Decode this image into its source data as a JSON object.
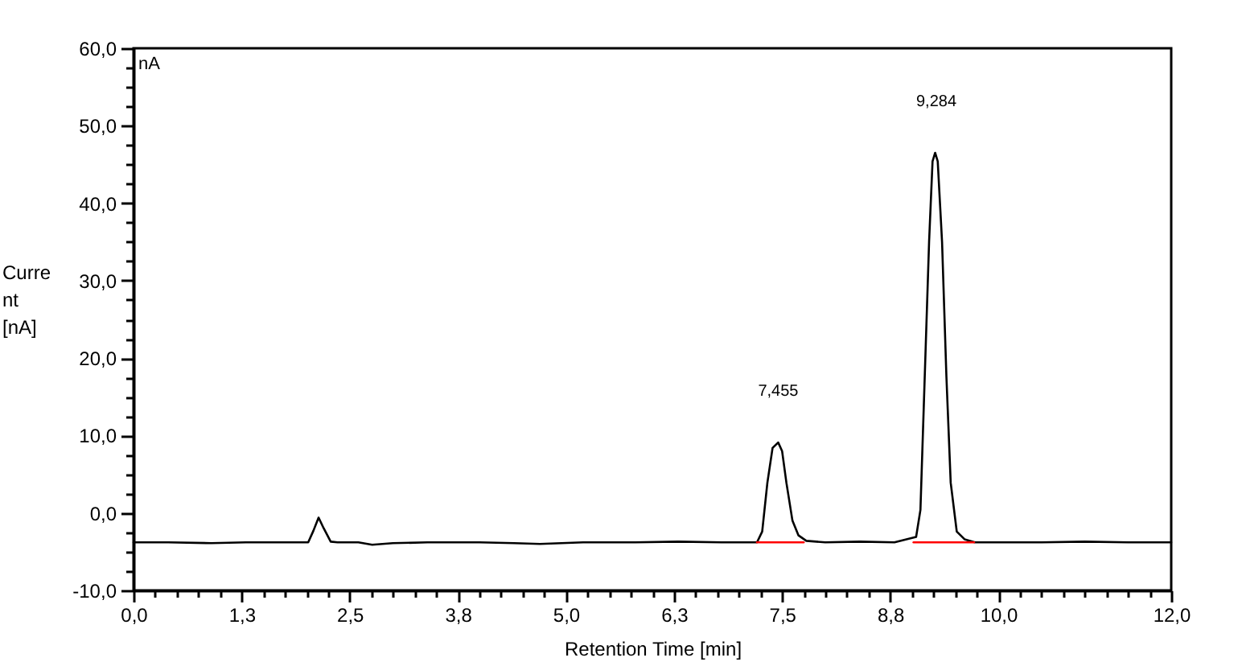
{
  "chart_data": {
    "type": "line",
    "xlabel": "Retention Time [min]",
    "ylabel": "Current [nA]",
    "annotations": [
      "nA",
      {
        "text": "7,455",
        "x": 7.455,
        "y": 9.1
      },
      {
        "text": "9,284",
        "x": 9.284,
        "y": 46.5
      }
    ],
    "xlim": [
      0,
      12
    ],
    "ylim": [
      -10,
      60
    ],
    "xticks": [
      {
        "value": 0,
        "label": "0,0"
      },
      {
        "value": 0.25,
        "label": null
      },
      {
        "value": 0.5,
        "label": null
      },
      {
        "value": 0.75,
        "label": null
      },
      {
        "value": 1,
        "label": null
      },
      {
        "value": 1.25,
        "label": "1,3"
      },
      {
        "value": 1.5,
        "label": null
      },
      {
        "value": 1.75,
        "label": null
      },
      {
        "value": 2,
        "label": null
      },
      {
        "value": 2.25,
        "label": null
      },
      {
        "value": 2.5,
        "label": "2,5"
      },
      {
        "value": 2.75,
        "label": null
      },
      {
        "value": 3,
        "label": null
      },
      {
        "value": 3.25,
        "label": null
      },
      {
        "value": 3.5,
        "label": null
      },
      {
        "value": 3.75,
        "label": "3,8"
      },
      {
        "value": 4,
        "label": null
      },
      {
        "value": 4.25,
        "label": null
      },
      {
        "value": 4.5,
        "label": null
      },
      {
        "value": 4.75,
        "label": null
      },
      {
        "value": 5,
        "label": "5,0"
      },
      {
        "value": 5.25,
        "label": null
      },
      {
        "value": 5.5,
        "label": null
      },
      {
        "value": 5.75,
        "label": null
      },
      {
        "value": 6,
        "label": null
      },
      {
        "value": 6.25,
        "label": "6,3"
      },
      {
        "value": 6.5,
        "label": null
      },
      {
        "value": 6.75,
        "label": null
      },
      {
        "value": 7,
        "label": null
      },
      {
        "value": 7.25,
        "label": null
      },
      {
        "value": 7.5,
        "label": "7,5"
      },
      {
        "value": 7.75,
        "label": null
      },
      {
        "value": 8,
        "label": null
      },
      {
        "value": 8.25,
        "label": null
      },
      {
        "value": 8.5,
        "label": null
      },
      {
        "value": 8.75,
        "label": "8,8"
      },
      {
        "value": 9,
        "label": null
      },
      {
        "value": 9.25,
        "label": null
      },
      {
        "value": 9.5,
        "label": null
      },
      {
        "value": 9.75,
        "label": null
      },
      {
        "value": 10,
        "label": "10,0"
      },
      {
        "value": 10.25,
        "label": null
      },
      {
        "value": 10.5,
        "label": null
      },
      {
        "value": 10.75,
        "label": null
      },
      {
        "value": 11,
        "label": null
      },
      {
        "value": 11.25,
        "label": null
      },
      {
        "value": 11.5,
        "label": null
      },
      {
        "value": 11.75,
        "label": null
      },
      {
        "value": 12,
        "label": "12,0"
      }
    ],
    "yticks": [
      {
        "value": -10,
        "label": "-10,0"
      },
      {
        "value": -7.5,
        "label": null
      },
      {
        "value": -5,
        "label": null
      },
      {
        "value": -2.5,
        "label": null
      },
      {
        "value": 0,
        "label": "0,0"
      },
      {
        "value": 2.5,
        "label": null
      },
      {
        "value": 5,
        "label": null
      },
      {
        "value": 7.5,
        "label": null
      },
      {
        "value": 10,
        "label": "10,0"
      },
      {
        "value": 12.5,
        "label": null
      },
      {
        "value": 15,
        "label": null
      },
      {
        "value": 17.5,
        "label": null
      },
      {
        "value": 20,
        "label": "20,0"
      },
      {
        "value": 22.5,
        "label": null
      },
      {
        "value": 25,
        "label": null
      },
      {
        "value": 27.5,
        "label": null
      },
      {
        "value": 30,
        "label": "30,0"
      },
      {
        "value": 32.5,
        "label": null
      },
      {
        "value": 35,
        "label": null
      },
      {
        "value": 37.5,
        "label": null
      },
      {
        "value": 40,
        "label": "40,0"
      },
      {
        "value": 42.5,
        "label": null
      },
      {
        "value": 45,
        "label": null
      },
      {
        "value": 47.5,
        "label": null
      },
      {
        "value": 50,
        "label": "50,0"
      },
      {
        "value": 52.5,
        "label": null
      },
      {
        "value": 55,
        "label": null
      },
      {
        "value": 57.5,
        "label": null
      },
      {
        "value": 60,
        "label": "60,0"
      }
    ],
    "series": [
      {
        "color": "#000000",
        "x": [
          0,
          0.4,
          0.9,
          1.3,
          1.7,
          2.02,
          2.08,
          2.14,
          2.2,
          2.28,
          2.36,
          2.6,
          2.76,
          3.0,
          3.4,
          4.0,
          4.4,
          4.7,
          5.2,
          5.8,
          6.3,
          6.8,
          7.21,
          7.27,
          7.33,
          7.39,
          7.455,
          7.5,
          7.55,
          7.62,
          7.69,
          7.78,
          8.0,
          8.4,
          8.8,
          9.05,
          9.1,
          9.15,
          9.2,
          9.24,
          9.27,
          9.3,
          9.35,
          9.4,
          9.45,
          9.52,
          9.61,
          9.73,
          10.0,
          10.5,
          11.0,
          11.5,
          12.0
        ],
        "values": [
          -3.8,
          -3.8,
          -3.9,
          -3.8,
          -3.8,
          -3.8,
          -2.3,
          -0.6,
          -2.0,
          -3.7,
          -3.8,
          -3.8,
          -4.1,
          -3.9,
          -3.8,
          -3.8,
          -3.9,
          -4.0,
          -3.8,
          -3.8,
          -3.7,
          -3.8,
          -3.8,
          -2.4,
          3.9,
          8.4,
          9.1,
          8.0,
          3.9,
          -1.0,
          -2.9,
          -3.6,
          -3.8,
          -3.7,
          -3.8,
          -3.1,
          0.4,
          17.7,
          35.0,
          45.4,
          46.5,
          45.4,
          35.0,
          17.7,
          3.9,
          -2.4,
          -3.4,
          -3.8,
          -3.8,
          -3.8,
          -3.7,
          -3.8,
          -3.8
        ]
      },
      {
        "color": "#ff0000",
        "x": [
          7.21,
          7.75
        ],
        "values": [
          -3.8,
          -3.8
        ]
      },
      {
        "color": "#ff0000",
        "x": [
          9.02,
          9.72
        ],
        "values": [
          -3.8,
          -3.8
        ]
      }
    ]
  }
}
